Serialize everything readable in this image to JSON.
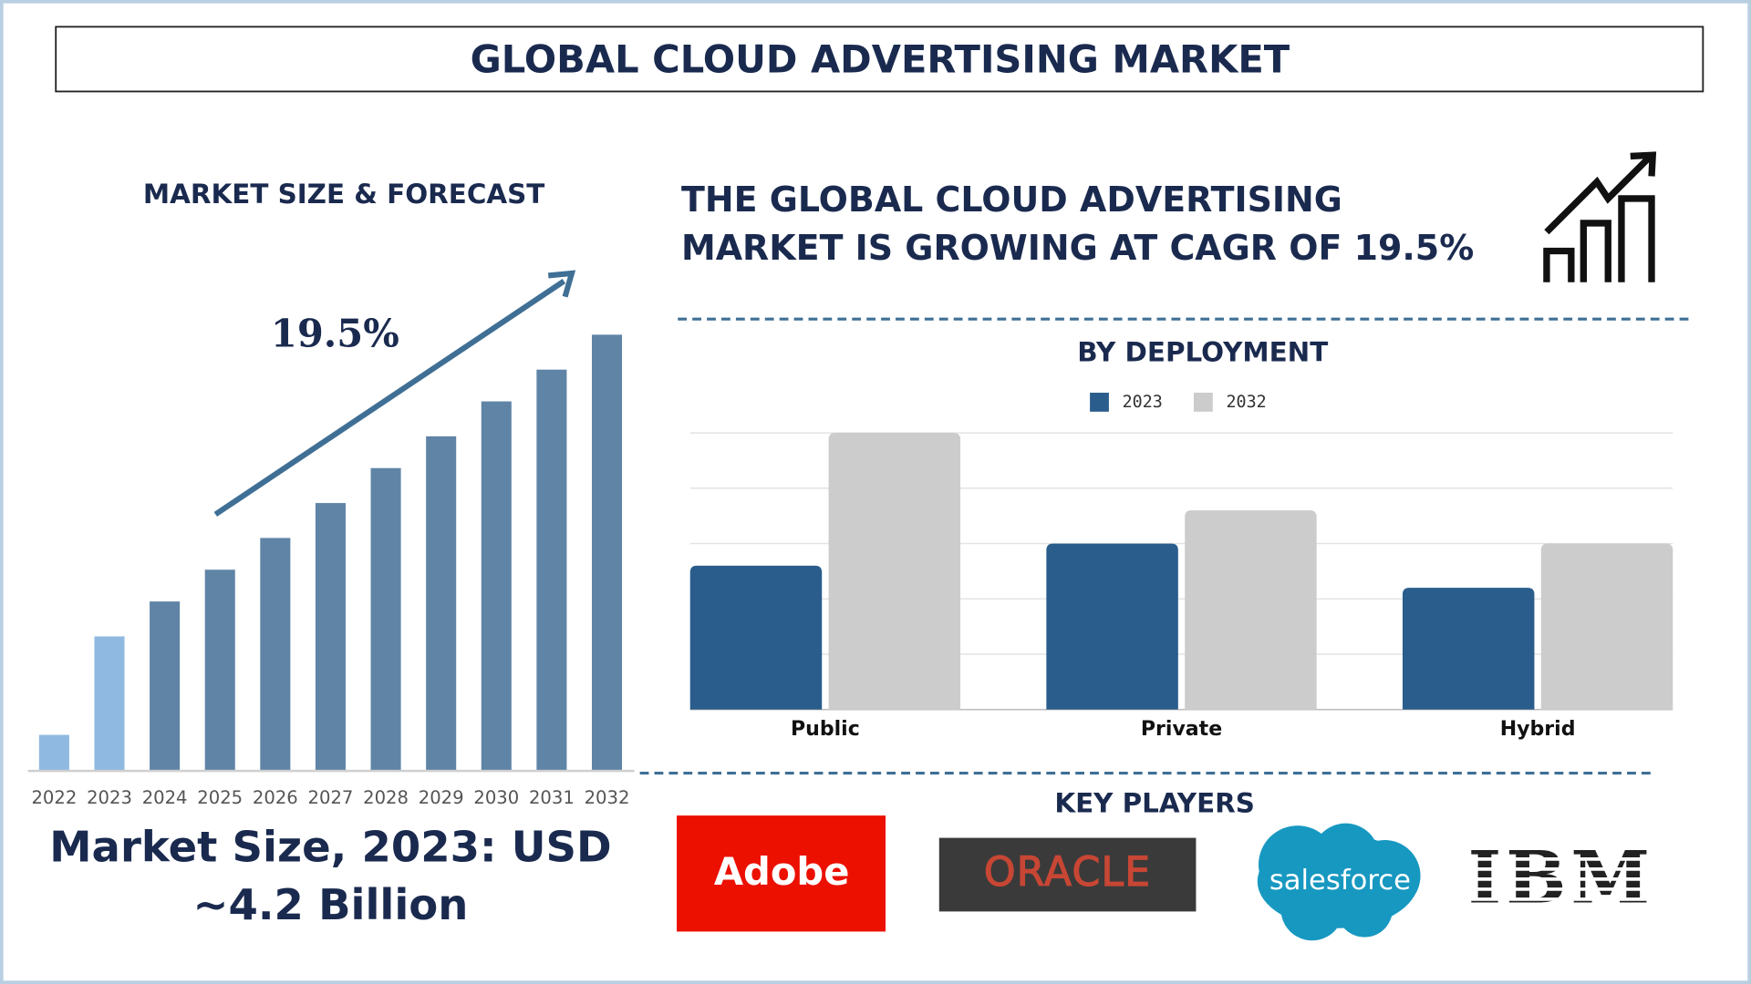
{
  "title": "GLOBAL CLOUD ADVERTISING MARKET",
  "headline": [
    "THE GLOBAL CLOUD ADVERTISING",
    "MARKET IS GROWING AT CAGR OF 19.5%"
  ],
  "market_size": [
    "Market Size, 2023: USD",
    "~4.2 Billion"
  ],
  "key_players": {
    "title": "KEY PLAYERS",
    "logos": [
      "Adobe",
      "ORACLE",
      "salesforce",
      "IBM"
    ]
  },
  "chart_data": [
    {
      "type": "bar",
      "title": "MARKET SIZE & FORECAST",
      "annotation": "19.5%",
      "categories": [
        "2022",
        "2023",
        "2024",
        "2025",
        "2026",
        "2027",
        "2028",
        "2029",
        "2030",
        "2031",
        "2032"
      ],
      "values": [
        1.1,
        4.2,
        5.3,
        6.3,
        7.3,
        8.4,
        9.5,
        10.5,
        11.6,
        12.6,
        13.7
      ],
      "colors": [
        "#8fb9e0",
        "#8fb9e0",
        "#5f84a6",
        "#5f84a6",
        "#5f84a6",
        "#5f84a6",
        "#5f84a6",
        "#5f84a6",
        "#5f84a6",
        "#5f84a6",
        "#5f84a6"
      ]
    },
    {
      "type": "grouped-bar",
      "title": "BY DEPLOYMENT",
      "categories": [
        "Public",
        "Private",
        "Hybrid"
      ],
      "series": [
        {
          "name": "2023",
          "color": "#2a5d8c",
          "values": [
            2.6,
            3.0,
            2.2
          ]
        },
        {
          "name": "2032",
          "color": "#cccccc",
          "values": [
            5.0,
            3.6,
            3.0
          ]
        }
      ],
      "ylim": [
        0,
        5
      ],
      "yticks": [
        0,
        1,
        2,
        3,
        4,
        5
      ],
      "grid": true
    }
  ]
}
